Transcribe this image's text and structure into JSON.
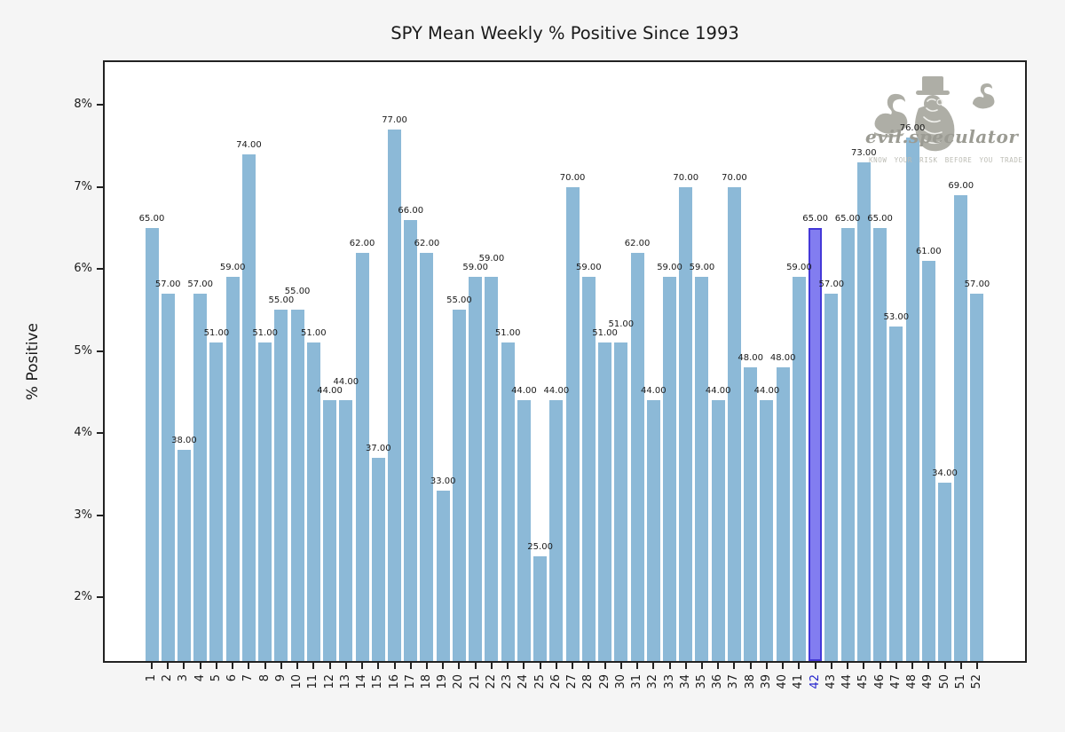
{
  "title": "SPY Mean Weekly % Positive Since 1993",
  "watermark": {
    "brand": "evil.speculator",
    "tagline": "KNOW YOUR RISK BEFORE YOU TRADE",
    "logo": "top-hat-speculator-with-two-swans"
  },
  "chart_data": {
    "type": "bar",
    "title": "SPY Mean Weekly % Positive Since 1993",
    "xlabel": "",
    "ylabel": "% Positive",
    "categories": [
      1,
      2,
      3,
      4,
      5,
      6,
      7,
      8,
      9,
      10,
      11,
      12,
      13,
      14,
      15,
      16,
      17,
      18,
      19,
      20,
      21,
      22,
      23,
      24,
      25,
      26,
      27,
      28,
      29,
      30,
      31,
      32,
      33,
      34,
      35,
      36,
      37,
      38,
      39,
      40,
      41,
      42,
      43,
      44,
      45,
      46,
      47,
      48,
      49,
      50,
      51,
      52
    ],
    "values": [
      65,
      57,
      38,
      57,
      51,
      59,
      74,
      51,
      55,
      55,
      51,
      44,
      44,
      62,
      37,
      77,
      66,
      62,
      33,
      55,
      59,
      59,
      51,
      44,
      25,
      44,
      70,
      59,
      51,
      51,
      62,
      44,
      59,
      70,
      59,
      44,
      70,
      48,
      44,
      48,
      59,
      65,
      57,
      65,
      73,
      65,
      53,
      76,
      61,
      34,
      69,
      57
    ],
    "value_label_format": "two-decimals (e.g. 65.00)",
    "bars_plotted_as_percent": "value / 10",
    "yticks_percent": [
      8,
      7,
      6,
      5,
      4,
      3,
      2
    ],
    "ytick_labels": [
      "8%",
      "7%",
      "6%",
      "5%",
      "4%",
      "3%",
      "2%"
    ],
    "ylim_percent": [
      1.22,
      8.52
    ],
    "grid": false,
    "legend": "none",
    "highlight_week": 42,
    "colors": {
      "figure_background": "#f5f5f5",
      "plot_background": "#ffffff",
      "spine": "#222222",
      "bar": "#8cb9d7",
      "bar_highlight_fill": "#827df0",
      "bar_highlight_edge": "#4438d8",
      "highlight_tick_label": "#2323cc",
      "text": "#1a1a1a"
    }
  }
}
